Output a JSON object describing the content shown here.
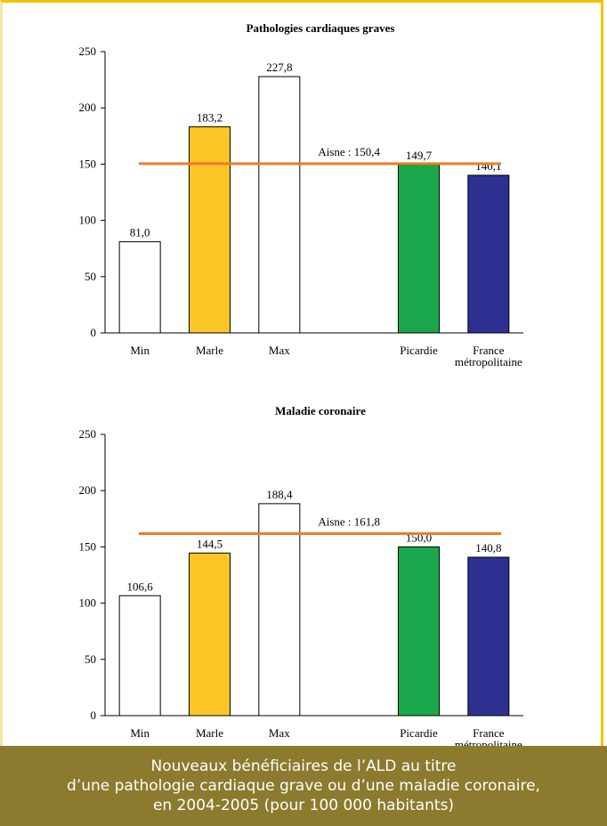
{
  "chart_data": [
    {
      "type": "bar",
      "title": "Pathologies cardiaques graves",
      "categories": [
        "Min",
        "Marle",
        "Max",
        "",
        "Picardie",
        "France|métropolitaine"
      ],
      "values": [
        81.0,
        183.2,
        227.8,
        null,
        149.7,
        140.1
      ],
      "value_labels": [
        "81,0",
        "183,2",
        "227,8",
        "",
        "149,7",
        "140,1"
      ],
      "bar_colors": [
        "#ffffff",
        "#fbc626",
        "#ffffff",
        null,
        "#1aa64a",
        "#2e3192"
      ],
      "ylim": [
        0,
        250
      ],
      "yticks": [
        0,
        50,
        100,
        150,
        200,
        250
      ],
      "reference_line": {
        "value": 150.4,
        "label": "Aisne : 150,4",
        "color": "#f07a2a"
      }
    },
    {
      "type": "bar",
      "title": "Maladie coronaire",
      "categories": [
        "Min",
        "Marle",
        "Max",
        "",
        "Picardie",
        "France|métropolitaine"
      ],
      "values": [
        106.6,
        144.5,
        188.4,
        null,
        150.0,
        140.8
      ],
      "value_labels": [
        "106,6",
        "144,5",
        "188,4",
        "",
        "150,0",
        "140,8"
      ],
      "bar_colors": [
        "#ffffff",
        "#fbc626",
        "#ffffff",
        null,
        "#1aa64a",
        "#2e3192"
      ],
      "ylim": [
        0,
        250
      ],
      "yticks": [
        0,
        50,
        100,
        150,
        200,
        250
      ],
      "reference_line": {
        "value": 161.8,
        "label": "Aisne : 161,8",
        "color": "#f07a2a"
      }
    }
  ],
  "caption": {
    "line1": "Nouveaux bénéficiaires de l’ALD au titre",
    "line2": "d’une pathologie cardiaque grave ou d’une maladie coronaire,",
    "line3": "en 2004-2005 (pour 100 000 habitants)"
  },
  "colors": {
    "frame": "#f2c300",
    "caption_bg": "#8c7a2e",
    "caption_text": "#ffffff"
  }
}
